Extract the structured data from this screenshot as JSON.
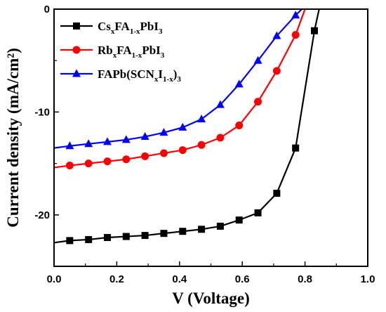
{
  "chart_data": {
    "type": "line",
    "xlabel": "V (Voltage)",
    "ylabel": "Current density (mA/cm²)",
    "xlim": [
      0.0,
      1.0
    ],
    "ylim": [
      -25,
      0
    ],
    "x_ticks": [
      "0.0",
      "0.2",
      "0.4",
      "0.6",
      "0.8",
      "1.0"
    ],
    "y_ticks": [
      "0",
      "-10",
      "-20"
    ],
    "grid": false,
    "legend_position": "top-left",
    "series": [
      {
        "name": "CsxFA1-xPbI3",
        "legend": {
          "parts": [
            [
              "Cs",
              ""
            ],
            [
              "x",
              "sub"
            ],
            [
              "FA",
              ""
            ],
            [
              "1-x",
              "sub"
            ],
            [
              "PbI",
              ""
            ],
            [
              "3",
              "sub"
            ]
          ]
        },
        "color": "#000000",
        "marker": "square",
        "x": [
          0.0,
          0.05,
          0.11,
          0.17,
          0.23,
          0.29,
          0.35,
          0.41,
          0.47,
          0.53,
          0.59,
          0.65,
          0.71,
          0.77,
          0.83,
          0.845
        ],
        "y": [
          -22.7,
          -22.5,
          -22.4,
          -22.2,
          -22.1,
          -22.0,
          -21.8,
          -21.6,
          -21.4,
          -21.1,
          -20.5,
          -19.8,
          -17.9,
          -13.5,
          -2.1,
          0.0
        ],
        "markers_x": [
          0.05,
          0.11,
          0.17,
          0.23,
          0.29,
          0.35,
          0.41,
          0.47,
          0.53,
          0.59,
          0.65,
          0.71,
          0.77,
          0.83
        ],
        "markers_y": [
          -22.5,
          -22.4,
          -22.2,
          -22.1,
          -22.0,
          -21.8,
          -21.6,
          -21.4,
          -21.1,
          -20.5,
          -19.8,
          -17.9,
          -13.5,
          -2.1
        ]
      },
      {
        "name": "RbxFA1-xPbI3",
        "legend": {
          "parts": [
            [
              "Rb",
              ""
            ],
            [
              "x",
              "sub"
            ],
            [
              "FA",
              ""
            ],
            [
              "1-x",
              "sub"
            ],
            [
              "PbI",
              ""
            ],
            [
              "3",
              "sub"
            ]
          ]
        },
        "color": "#ff0000",
        "marker": "circle",
        "x": [
          0.0,
          0.05,
          0.11,
          0.17,
          0.23,
          0.29,
          0.35,
          0.41,
          0.47,
          0.53,
          0.59,
          0.65,
          0.71,
          0.77,
          0.8
        ],
        "y": [
          -15.4,
          -15.2,
          -15.0,
          -14.8,
          -14.6,
          -14.3,
          -14.0,
          -13.7,
          -13.2,
          -12.5,
          -11.3,
          -9.0,
          -6.0,
          -2.5,
          0.0
        ],
        "markers_x": [
          0.05,
          0.11,
          0.17,
          0.23,
          0.29,
          0.35,
          0.41,
          0.47,
          0.53,
          0.59,
          0.65,
          0.71,
          0.77
        ],
        "markers_y": [
          -15.2,
          -15.0,
          -14.8,
          -14.6,
          -14.3,
          -14.0,
          -13.7,
          -13.2,
          -12.5,
          -11.3,
          -9.0,
          -6.0,
          -2.5
        ]
      },
      {
        "name": "FAPb(SCNxI1-x)3",
        "legend": {
          "parts": [
            [
              "FAPb(SCN",
              ""
            ],
            [
              "x",
              "sub"
            ],
            [
              "I",
              ""
            ],
            [
              "1-x",
              "sub"
            ],
            [
              ")",
              ""
            ],
            [
              "3",
              "sub"
            ]
          ]
        },
        "color": "#0000ff",
        "marker": "triangle",
        "x": [
          0.0,
          0.05,
          0.11,
          0.17,
          0.23,
          0.29,
          0.35,
          0.41,
          0.47,
          0.53,
          0.59,
          0.65,
          0.71,
          0.77,
          0.79
        ],
        "y": [
          -13.5,
          -13.3,
          -13.1,
          -12.9,
          -12.7,
          -12.4,
          -12.0,
          -11.5,
          -10.7,
          -9.3,
          -7.3,
          -5.0,
          -2.6,
          -0.6,
          0.0
        ],
        "markers_x": [
          0.05,
          0.11,
          0.17,
          0.23,
          0.29,
          0.35,
          0.41,
          0.47,
          0.53,
          0.59,
          0.65,
          0.71,
          0.77
        ],
        "markers_y": [
          -13.3,
          -13.1,
          -12.9,
          -12.7,
          -12.4,
          -12.0,
          -11.5,
          -10.7,
          -9.3,
          -7.3,
          -5.0,
          -2.6,
          -0.6
        ]
      }
    ]
  }
}
